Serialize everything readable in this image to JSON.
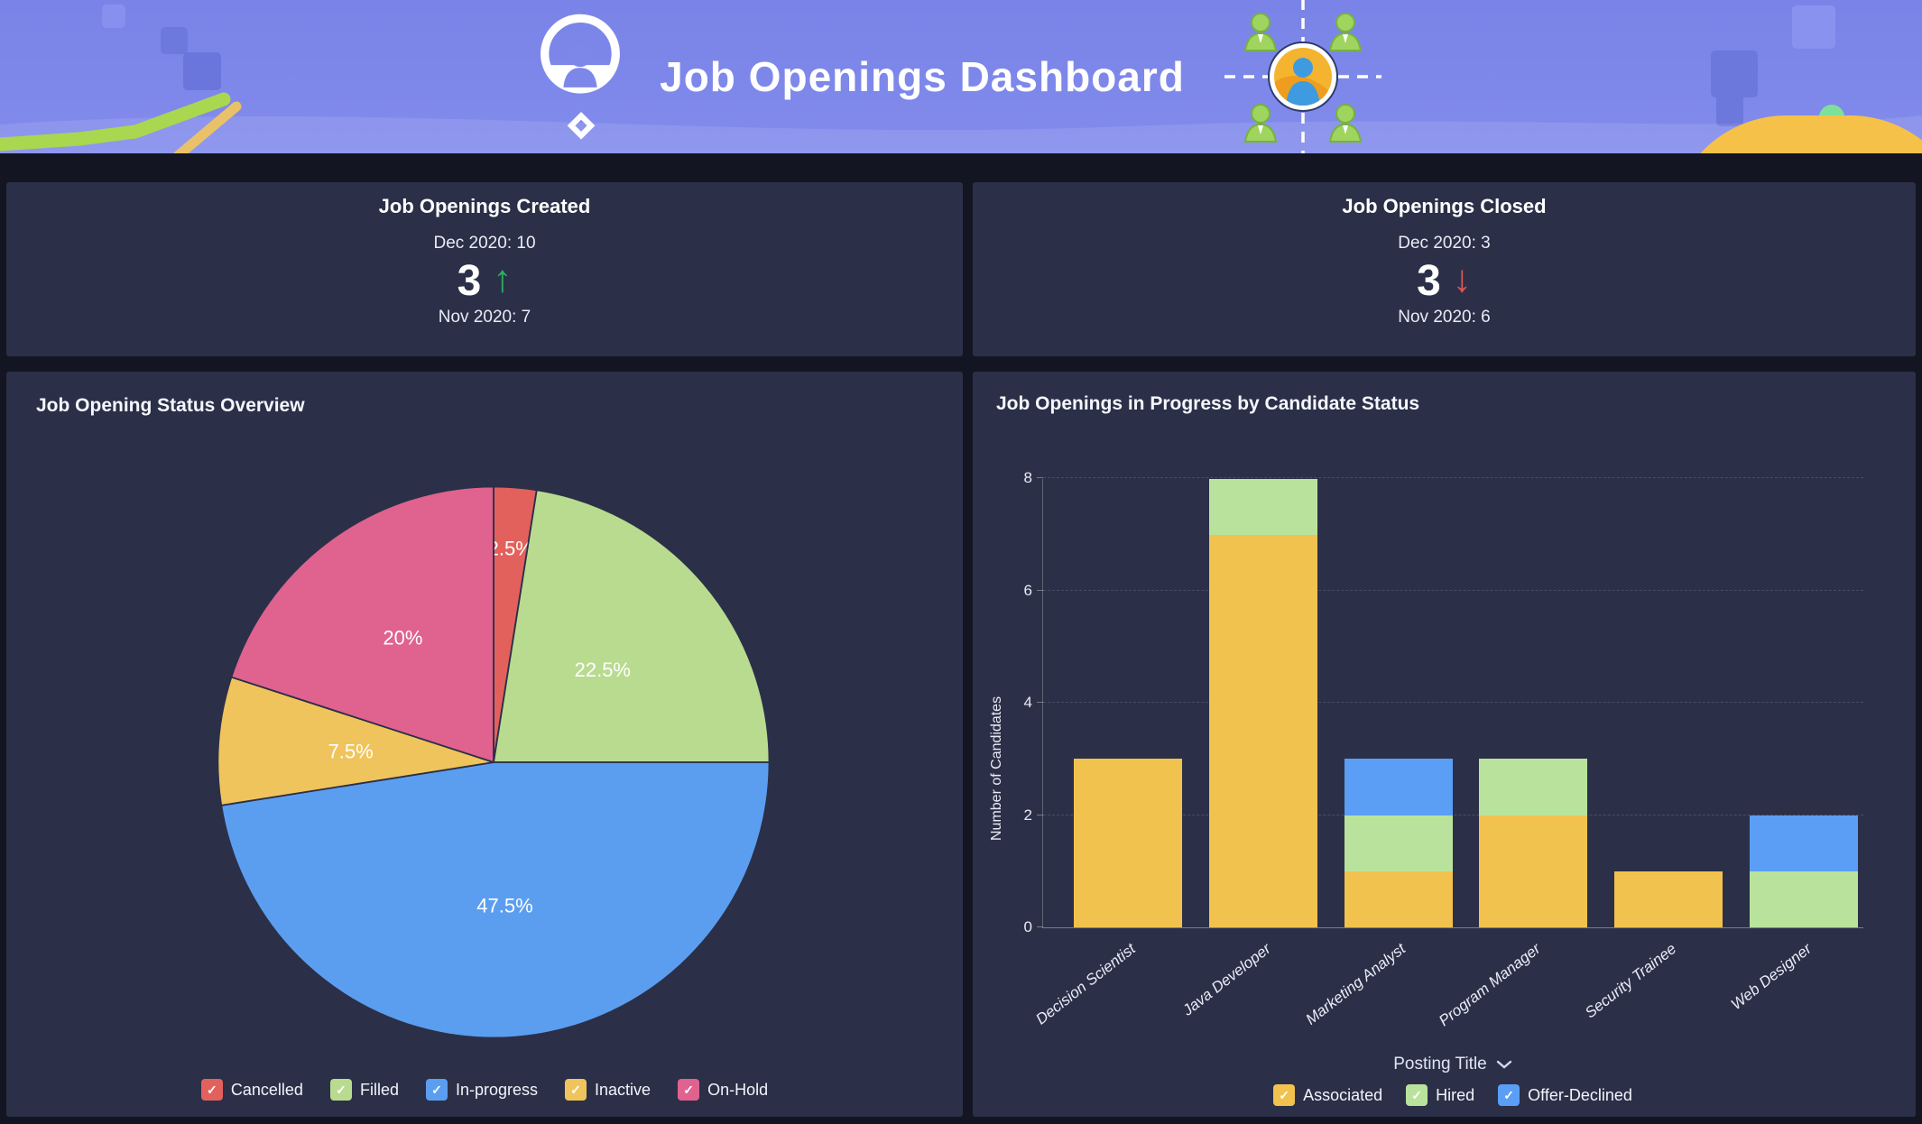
{
  "banner": {
    "title": "Job Openings Dashboard"
  },
  "icons": {
    "check": "✓",
    "arrow_up": "↑",
    "arrow_down": "↓"
  },
  "colors": {
    "page_bg": "#131622",
    "card_bg": "#2b3048",
    "banner_bg": "#7b85e9",
    "delta_up": "#2fae5e",
    "delta_down": "#df5550"
  },
  "kpi_cards": [
    {
      "title": "Job Openings Created",
      "current_label": "Dec 2020: 10",
      "delta": "3",
      "arrow": "↑",
      "direction": "up",
      "previous_label": "Nov 2020: 7"
    },
    {
      "title": "Job Openings Closed",
      "current_label": "Dec 2020: 3",
      "delta": "3",
      "arrow": "↓",
      "direction": "down",
      "previous_label": "Nov 2020: 6"
    }
  ],
  "chart_data": [
    {
      "type": "pie",
      "title": "Job Opening Status Overview",
      "start_angle_deg": 0,
      "direction": "clockwise",
      "slices": [
        {
          "label": "Cancelled",
          "value_pct": 2.5,
          "color": "#e2615c",
          "label_r": 0.78
        },
        {
          "label": "Filled",
          "value_pct": 22.5,
          "color": "#b9db90",
          "label_r": 0.52
        },
        {
          "label": "In-progress",
          "value_pct": 47.5,
          "color": "#5b9ef0",
          "label_r": 0.52
        },
        {
          "label": "Inactive",
          "value_pct": 7.5,
          "color": "#f0c45c",
          "label_r": 0.52
        },
        {
          "label": "On-Hold",
          "value_pct": 20,
          "color": "#e0628f",
          "label_r": 0.56
        }
      ],
      "legend_position": "bottom"
    },
    {
      "type": "bar",
      "stacked": true,
      "title": "Job Openings in Progress by Candidate Status",
      "categories": [
        "Decision Scientist",
        "Java Developer",
        "Marketing Analyst",
        "Program Manager",
        "Security Trainee",
        "Web Designer"
      ],
      "series": [
        {
          "name": "Associated",
          "color": "#f2c24e",
          "values": [
            3,
            7,
            1,
            2,
            1,
            0
          ]
        },
        {
          "name": "Hired",
          "color": "#b9e39c",
          "values": [
            0,
            1,
            1,
            1,
            0,
            1
          ]
        },
        {
          "name": "Offer-Declined",
          "color": "#5b9ef5",
          "values": [
            0,
            0,
            1,
            0,
            0,
            1
          ]
        }
      ],
      "totals": [
        3,
        8,
        3,
        3,
        1,
        2
      ],
      "xlabel": "Posting Title",
      "ylabel": "Number of Candidates",
      "yticks": [
        0,
        2,
        4,
        6,
        8
      ],
      "ymax": 8,
      "grid": "dashed horizontal",
      "legend_position": "bottom"
    }
  ]
}
